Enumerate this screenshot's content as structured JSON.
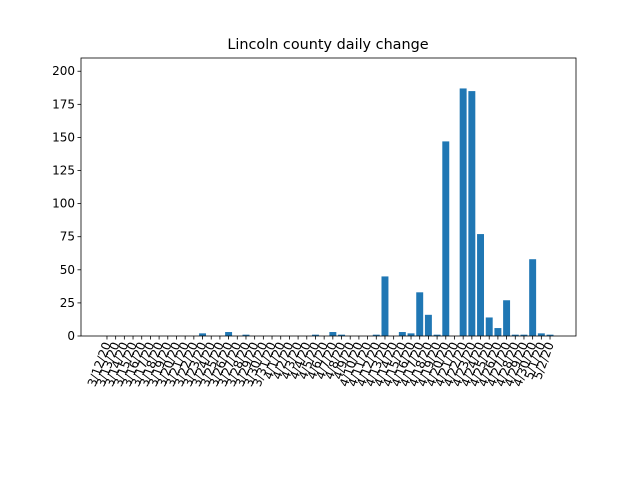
{
  "chart_data": {
    "type": "bar",
    "title": "Lincoln county daily change",
    "categories": [
      "3/12/20",
      "3/13/20",
      "3/14/20",
      "3/15/20",
      "3/16/20",
      "3/17/20",
      "3/18/20",
      "3/19/20",
      "3/20/20",
      "3/21/20",
      "3/22/20",
      "3/23/20",
      "3/24/20",
      "3/25/20",
      "3/26/20",
      "3/27/20",
      "3/28/20",
      "3/29/20",
      "3/30/20",
      "3/31/20",
      "4/1/20",
      "4/2/20",
      "4/3/20",
      "4/4/20",
      "4/5/20",
      "4/6/20",
      "4/7/20",
      "4/8/20",
      "4/9/20",
      "4/10/20",
      "4/11/20",
      "4/12/20",
      "4/13/20",
      "4/14/20",
      "4/15/20",
      "4/16/20",
      "4/17/20",
      "4/18/20",
      "4/19/20",
      "4/20/20",
      "4/21/20",
      "4/22/20",
      "4/23/20",
      "4/24/20",
      "4/25/20",
      "4/26/20",
      "4/27/20",
      "4/28/20",
      "4/29/20",
      "4/30/20",
      "5/1/20",
      "5/2/20"
    ],
    "values": [
      0,
      0,
      0,
      0,
      0,
      0,
      0,
      0,
      0,
      0,
      0,
      2,
      0,
      0,
      3,
      0,
      1,
      0,
      0,
      0,
      0,
      0,
      0,
      0,
      1,
      0,
      3,
      1,
      0,
      0,
      0,
      1,
      45,
      0,
      3,
      2,
      33,
      16,
      1,
      147,
      0,
      187,
      185,
      77,
      14,
      6,
      27,
      1,
      1,
      58,
      2,
      1
    ],
    "color": "#1f77b4",
    "ylim": [
      0,
      210
    ],
    "yticks": [
      0,
      25,
      50,
      75,
      100,
      125,
      150,
      175,
      200
    ]
  }
}
